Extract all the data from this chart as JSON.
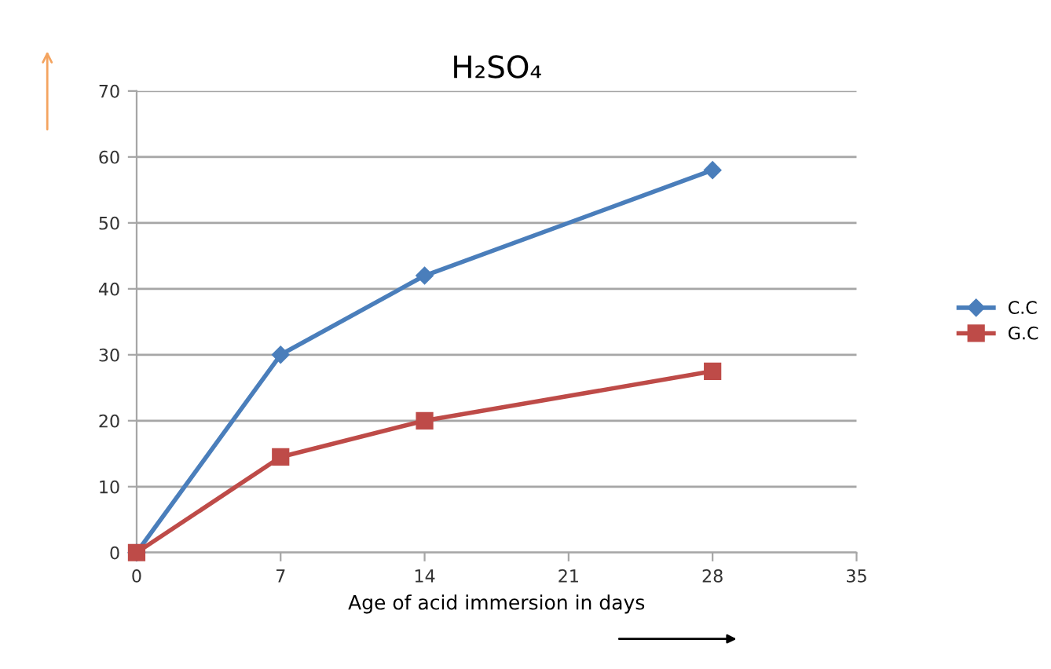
{
  "chart_data": {
    "type": "line",
    "title": "H₂SO₄",
    "xlabel": "Age of acid immersion in days",
    "x": [
      0,
      7,
      14,
      28
    ],
    "series": [
      {
        "name": "C.C",
        "color": "#4a7ebb",
        "marker": "diamond",
        "values": [
          0,
          30,
          42,
          58
        ]
      },
      {
        "name": "G.C",
        "color": "#be4b48",
        "marker": "square",
        "values": [
          0,
          14.5,
          20,
          27.5
        ]
      }
    ],
    "xlim": [
      0,
      35
    ],
    "xticks": [
      0,
      7,
      14,
      21,
      28,
      35
    ],
    "ylim": [
      0,
      70
    ],
    "yticks": [
      0,
      10,
      20,
      30,
      40,
      50,
      60,
      70
    ],
    "grid": "y",
    "legend": "right",
    "line_style": "solid"
  }
}
